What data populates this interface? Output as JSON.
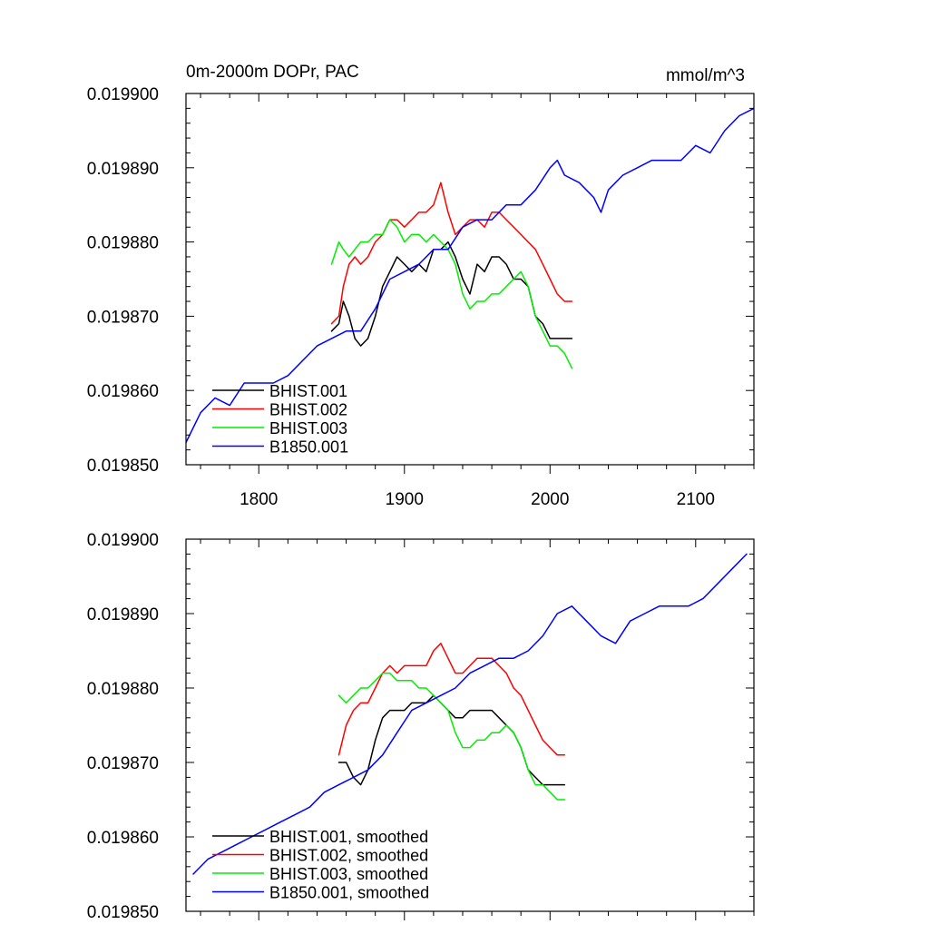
{
  "chart_data": [
    {
      "type": "line",
      "title": "0m-2000m DOPr, PAC",
      "units": "mmol/m^3",
      "xlim": [
        1750,
        2140
      ],
      "ylim": [
        0.01985,
        0.0199
      ],
      "xticks": [
        1800,
        1900,
        2000,
        2100
      ],
      "xtick_labels": [
        "1800",
        "1900",
        "2000",
        "2100"
      ],
      "yticks": [
        0.01985,
        0.01986,
        0.01987,
        0.01988,
        0.01989,
        0.0199
      ],
      "ytick_labels": [
        "0.019850",
        "0.019860",
        "0.019870",
        "0.019880",
        "0.019890",
        "0.019900"
      ],
      "legend": {
        "position": "bottom-left"
      },
      "series": [
        {
          "name": "BHIST.001",
          "color": "#000000",
          "x": [
            1850,
            1855,
            1858,
            1862,
            1866,
            1870,
            1875,
            1880,
            1885,
            1890,
            1895,
            1900,
            1905,
            1910,
            1915,
            1920,
            1925,
            1930,
            1935,
            1940,
            1945,
            1950,
            1955,
            1960,
            1965,
            1970,
            1975,
            1980,
            1985,
            1990,
            1995,
            2000,
            2005,
            2010,
            2015
          ],
          "y": [
            0.019868,
            0.019869,
            0.019872,
            0.01987,
            0.019867,
            0.019866,
            0.019867,
            0.01987,
            0.019874,
            0.019876,
            0.019878,
            0.019877,
            0.019876,
            0.019877,
            0.019876,
            0.019879,
            0.019879,
            0.01988,
            0.019878,
            0.019875,
            0.019873,
            0.019877,
            0.019876,
            0.019878,
            0.019878,
            0.019877,
            0.019875,
            0.019875,
            0.019874,
            0.01987,
            0.019869,
            0.019867,
            0.019867,
            0.019867,
            0.019867
          ]
        },
        {
          "name": "BHIST.002",
          "color": "#ff0000",
          "x": [
            1850,
            1855,
            1858,
            1862,
            1866,
            1870,
            1875,
            1880,
            1885,
            1890,
            1895,
            1900,
            1905,
            1910,
            1915,
            1920,
            1925,
            1930,
            1935,
            1940,
            1945,
            1950,
            1955,
            1960,
            1965,
            1970,
            1975,
            1980,
            1985,
            1990,
            1995,
            2000,
            2005,
            2010,
            2015
          ],
          "y": [
            0.019869,
            0.01987,
            0.019874,
            0.019877,
            0.019878,
            0.019877,
            0.019878,
            0.01988,
            0.019881,
            0.019883,
            0.019883,
            0.019882,
            0.019883,
            0.019884,
            0.019884,
            0.019885,
            0.019888,
            0.019884,
            0.019881,
            0.019882,
            0.019883,
            0.019883,
            0.019882,
            0.019884,
            0.019884,
            0.019883,
            0.019882,
            0.019881,
            0.01988,
            0.019879,
            0.019877,
            0.019875,
            0.019873,
            0.019872,
            0.019872
          ]
        },
        {
          "name": "BHIST.003",
          "color": "#00ee00",
          "x": [
            1850,
            1855,
            1858,
            1862,
            1866,
            1870,
            1875,
            1880,
            1885,
            1890,
            1895,
            1900,
            1905,
            1910,
            1915,
            1920,
            1925,
            1930,
            1935,
            1940,
            1945,
            1950,
            1955,
            1960,
            1965,
            1970,
            1975,
            1980,
            1985,
            1990,
            1995,
            2000,
            2005,
            2010,
            2015
          ],
          "y": [
            0.019877,
            0.01988,
            0.019879,
            0.019878,
            0.019879,
            0.01988,
            0.01988,
            0.019881,
            0.019881,
            0.019883,
            0.019882,
            0.01988,
            0.019881,
            0.019881,
            0.01988,
            0.019881,
            0.01988,
            0.019879,
            0.019877,
            0.019873,
            0.019871,
            0.019872,
            0.019872,
            0.019873,
            0.019873,
            0.019874,
            0.019875,
            0.019876,
            0.019874,
            0.01987,
            0.019868,
            0.019866,
            0.019866,
            0.019865,
            0.019863
          ]
        },
        {
          "name": "B1850.001",
          "color": "#0000ff",
          "x": [
            1750,
            1760,
            1770,
            1780,
            1790,
            1800,
            1810,
            1820,
            1830,
            1840,
            1850,
            1860,
            1870,
            1880,
            1890,
            1900,
            1910,
            1920,
            1930,
            1940,
            1950,
            1960,
            1970,
            1980,
            1990,
            2000,
            2005,
            2010,
            2020,
            2030,
            2035,
            2040,
            2050,
            2060,
            2070,
            2080,
            2090,
            2100,
            2110,
            2120,
            2130,
            2140
          ],
          "y": [
            0.019853,
            0.019857,
            0.019859,
            0.019858,
            0.019861,
            0.019861,
            0.019861,
            0.019862,
            0.019864,
            0.019866,
            0.019867,
            0.019868,
            0.019868,
            0.019871,
            0.019875,
            0.019876,
            0.019877,
            0.019879,
            0.019879,
            0.019882,
            0.019883,
            0.019883,
            0.019885,
            0.019885,
            0.019887,
            0.01989,
            0.019891,
            0.019889,
            0.019888,
            0.019886,
            0.019884,
            0.019887,
            0.019889,
            0.01989,
            0.019891,
            0.019891,
            0.019891,
            0.019893,
            0.019892,
            0.019895,
            0.019897,
            0.019898
          ]
        }
      ]
    },
    {
      "type": "line",
      "title": "",
      "units": "",
      "xlim": [
        1750,
        2140
      ],
      "ylim": [
        0.01985,
        0.0199
      ],
      "xticks": [
        1800,
        1900,
        2000,
        2100
      ],
      "xtick_labels": [],
      "yticks": [
        0.01985,
        0.01986,
        0.01987,
        0.01988,
        0.01989,
        0.0199
      ],
      "ytick_labels": [
        "0.019850",
        "0.019860",
        "0.019870",
        "0.019880",
        "0.019890",
        "0.019900"
      ],
      "legend": {
        "position": "bottom-left"
      },
      "series": [
        {
          "name": "BHIST.001, smoothed",
          "color": "#000000",
          "x": [
            1855,
            1860,
            1865,
            1870,
            1875,
            1880,
            1885,
            1890,
            1895,
            1900,
            1905,
            1910,
            1915,
            1920,
            1925,
            1930,
            1935,
            1940,
            1945,
            1950,
            1955,
            1960,
            1965,
            1970,
            1975,
            1980,
            1985,
            1990,
            1995,
            2000,
            2005,
            2010
          ],
          "y": [
            0.01987,
            0.01987,
            0.019868,
            0.019867,
            0.019869,
            0.019873,
            0.019876,
            0.019877,
            0.019877,
            0.019877,
            0.019878,
            0.019878,
            0.019878,
            0.019879,
            0.019878,
            0.019877,
            0.019876,
            0.019876,
            0.019877,
            0.019877,
            0.019877,
            0.019877,
            0.019876,
            0.019875,
            0.019874,
            0.019872,
            0.019869,
            0.019868,
            0.019867,
            0.019867,
            0.019867,
            0.019867
          ]
        },
        {
          "name": "BHIST.002, smoothed",
          "color": "#ff0000",
          "x": [
            1855,
            1860,
            1865,
            1870,
            1875,
            1880,
            1885,
            1890,
            1895,
            1900,
            1905,
            1910,
            1915,
            1920,
            1925,
            1930,
            1935,
            1940,
            1945,
            1950,
            1955,
            1960,
            1965,
            1970,
            1975,
            1980,
            1985,
            1990,
            1995,
            2000,
            2005,
            2010
          ],
          "y": [
            0.019871,
            0.019875,
            0.019877,
            0.019878,
            0.019878,
            0.01988,
            0.019882,
            0.019883,
            0.019882,
            0.019883,
            0.019883,
            0.019883,
            0.019883,
            0.019885,
            0.019886,
            0.019884,
            0.019882,
            0.019882,
            0.019883,
            0.019884,
            0.019884,
            0.019884,
            0.019883,
            0.019882,
            0.01988,
            0.019879,
            0.019877,
            0.019875,
            0.019873,
            0.019872,
            0.019871,
            0.019871
          ]
        },
        {
          "name": "BHIST.003, smoothed",
          "color": "#00ee00",
          "x": [
            1855,
            1860,
            1865,
            1870,
            1875,
            1880,
            1885,
            1890,
            1895,
            1900,
            1905,
            1910,
            1915,
            1920,
            1925,
            1930,
            1935,
            1940,
            1945,
            1950,
            1955,
            1960,
            1965,
            1970,
            1975,
            1980,
            1985,
            1990,
            1995,
            2000,
            2005,
            2010
          ],
          "y": [
            0.019879,
            0.019878,
            0.019879,
            0.01988,
            0.01988,
            0.019881,
            0.019882,
            0.019882,
            0.019881,
            0.019881,
            0.019881,
            0.01988,
            0.01988,
            0.019879,
            0.019878,
            0.019877,
            0.019874,
            0.019872,
            0.019872,
            0.019873,
            0.019873,
            0.019874,
            0.019874,
            0.019875,
            0.019874,
            0.019872,
            0.019869,
            0.019867,
            0.019867,
            0.019866,
            0.019865,
            0.019865
          ]
        },
        {
          "name": "B1850.001, smoothed",
          "color": "#0000ff",
          "x": [
            1755,
            1765,
            1775,
            1785,
            1795,
            1805,
            1815,
            1825,
            1835,
            1845,
            1855,
            1865,
            1875,
            1885,
            1895,
            1905,
            1915,
            1925,
            1935,
            1945,
            1955,
            1965,
            1975,
            1985,
            1995,
            2005,
            2015,
            2025,
            2035,
            2045,
            2055,
            2065,
            2075,
            2085,
            2095,
            2105,
            2115,
            2125,
            2135
          ],
          "y": [
            0.019855,
            0.019857,
            0.019858,
            0.019859,
            0.01986,
            0.019861,
            0.019862,
            0.019863,
            0.019864,
            0.019866,
            0.019867,
            0.019868,
            0.019869,
            0.019871,
            0.019874,
            0.019877,
            0.019878,
            0.019879,
            0.01988,
            0.019882,
            0.019883,
            0.019884,
            0.019884,
            0.019885,
            0.019887,
            0.01989,
            0.019891,
            0.019889,
            0.019887,
            0.019886,
            0.019889,
            0.01989,
            0.019891,
            0.019891,
            0.019891,
            0.019892,
            0.019894,
            0.019896,
            0.019898
          ]
        }
      ]
    }
  ]
}
